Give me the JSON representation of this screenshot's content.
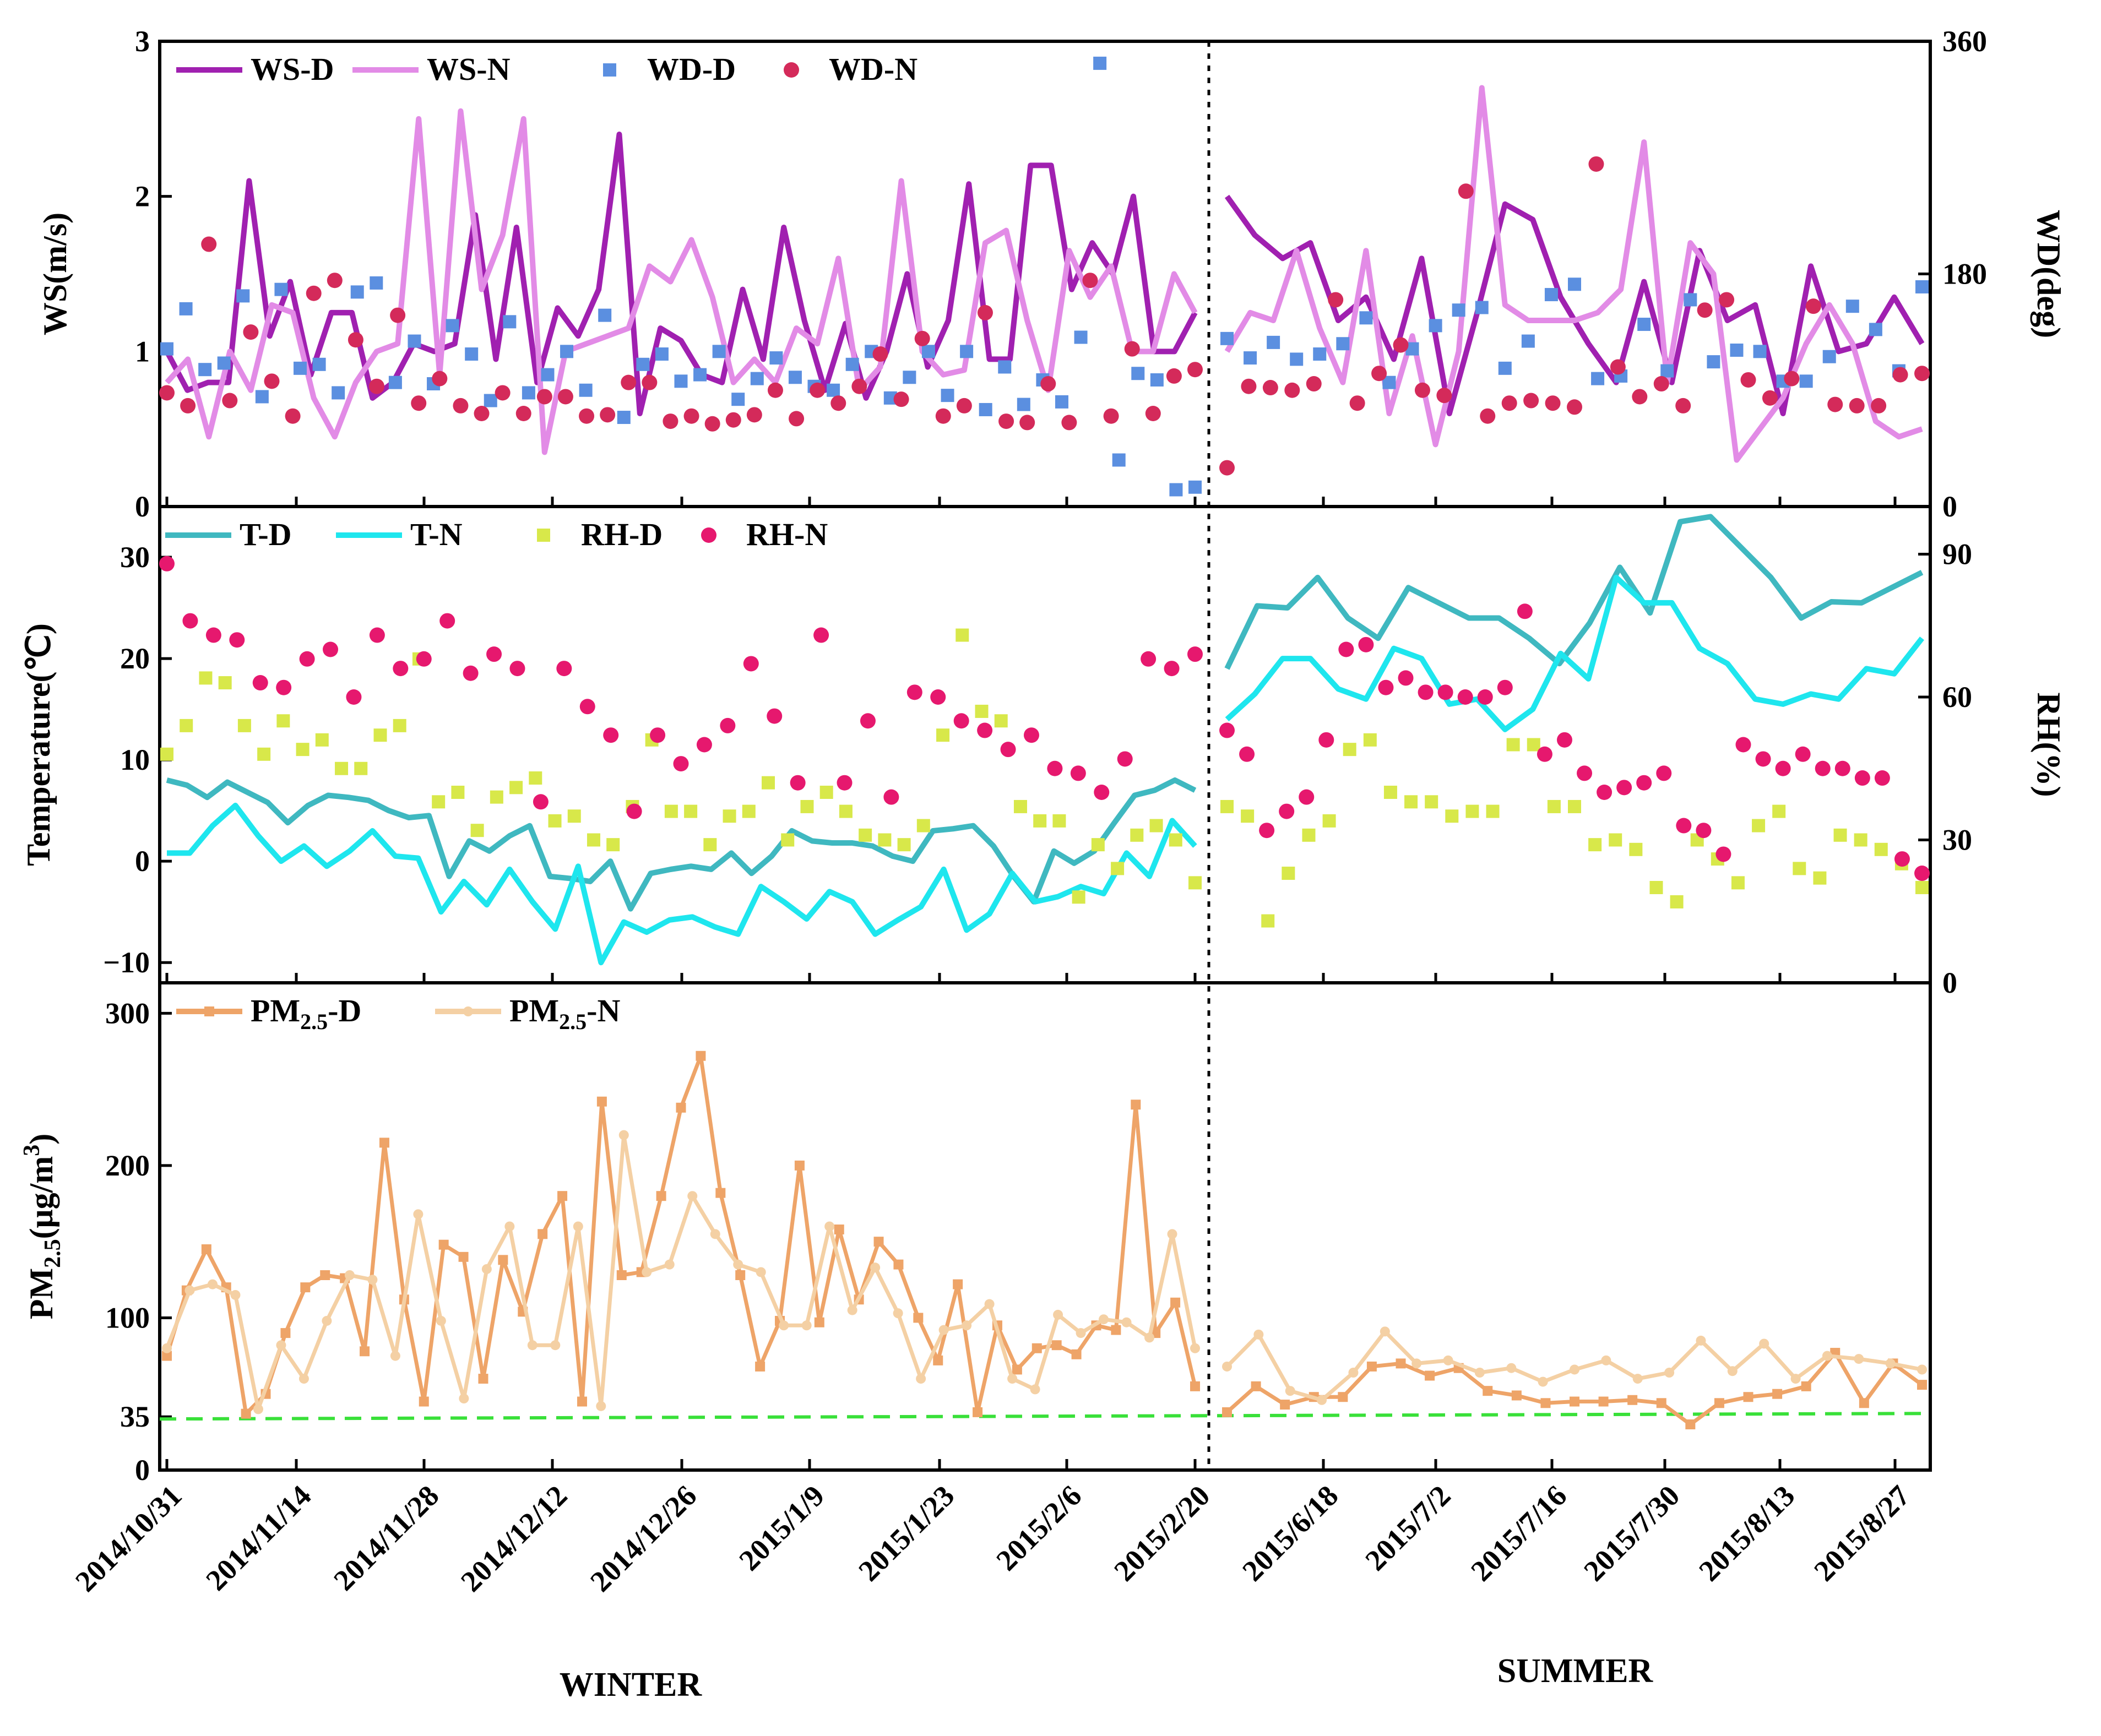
{
  "chart_data": [
    {
      "type": "line",
      "panel": "wind",
      "ylabel": "WS(m/s)",
      "y2label": "WD(deg)",
      "ylim": [
        0,
        3
      ],
      "y2lim": [
        0,
        360
      ],
      "yticks": [
        "0",
        "1",
        "2",
        "3"
      ],
      "y2ticks": [
        "0",
        "180",
        "360"
      ],
      "legend": [
        "WS-D",
        "WS-N",
        "WD-D",
        "WD-N"
      ],
      "colors": {
        "WS-D": "#a020b0",
        "WS-N": "#e28be6",
        "WD-D": "#5b8fe0",
        "WD-N": "#d42a5a"
      },
      "series": [
        {
          "name": "WS-D",
          "axis": "left",
          "kind": "line",
          "winter": [
            1.0,
            0.75,
            0.8,
            0.8,
            2.1,
            1.1,
            1.45,
            0.85,
            1.25,
            1.25,
            0.7,
            0.8,
            1.05,
            1.0,
            1.05,
            1.88,
            0.95,
            1.8,
            0.8,
            1.28,
            1.1,
            1.4,
            2.4,
            0.6,
            1.15,
            1.07,
            0.85,
            0.8,
            1.4,
            0.95,
            1.8,
            1.2,
            0.75,
            1.18,
            0.7,
            1.0,
            1.5,
            0.9,
            1.2,
            2.08,
            0.95,
            0.95,
            2.2,
            2.2,
            1.4,
            1.7,
            1.5,
            2.0,
            1.0,
            1.0,
            1.25
          ],
          "summer": [
            2.0,
            1.75,
            1.6,
            1.7,
            1.2,
            1.35,
            0.95,
            1.6,
            0.6,
            1.25,
            1.95,
            1.85,
            1.35,
            1.05,
            0.8,
            1.45,
            0.8,
            1.65,
            1.2,
            1.3,
            0.6,
            1.55,
            1.0,
            1.05,
            1.35,
            1.05
          ]
        },
        {
          "name": "WS-N",
          "axis": "left",
          "kind": "line",
          "winter": [
            0.8,
            0.95,
            0.45,
            1.0,
            0.75,
            1.3,
            1.25,
            0.7,
            0.45,
            0.8,
            1.0,
            1.05,
            2.5,
            0.85,
            2.55,
            1.4,
            1.75,
            2.5,
            0.35,
            1.0,
            1.05,
            1.1,
            1.15,
            1.55,
            1.45,
            1.72,
            1.35,
            0.8,
            0.95,
            0.8,
            1.15,
            1.05,
            1.6,
            0.75,
            0.9,
            2.1,
            1.0,
            0.85,
            0.88,
            1.7,
            1.78,
            1.2,
            0.75,
            1.65,
            1.35,
            1.55,
            1.0,
            1.0,
            1.5,
            1.25
          ],
          "summer": [
            1.0,
            1.25,
            1.2,
            1.65,
            1.15,
            0.8,
            1.65,
            0.6,
            1.1,
            0.4,
            1.0,
            2.7,
            1.3,
            1.2,
            1.2,
            1.2,
            1.25,
            1.4,
            2.35,
            0.8,
            1.7,
            1.5,
            0.3,
            0.5,
            0.7,
            1.05,
            1.3,
            1.05,
            0.55,
            0.45,
            0.5
          ]
        },
        {
          "name": "WD-D",
          "axis": "right",
          "kind": "scatter",
          "winter": [
            122,
            153,
            106,
            111,
            163,
            85,
            168,
            107,
            110,
            88,
            166,
            173,
            96,
            128,
            95,
            140,
            118,
            82,
            143,
            88,
            102,
            120,
            90,
            148,
            69,
            110,
            118,
            97,
            102,
            120,
            83,
            99,
            115,
            100,
            93,
            90,
            110,
            120,
            84,
            100,
            120,
            86,
            120,
            75,
            108,
            79,
            98,
            81,
            131,
            343,
            36,
            103,
            98,
            13,
            15
          ],
          "summer": [
            130,
            115,
            127,
            114,
            118,
            126,
            146,
            96,
            122,
            140,
            152,
            154,
            107,
            128,
            164,
            172,
            99,
            101,
            141,
            105,
            160,
            112,
            121,
            120,
            97,
            97,
            116,
            155,
            137,
            105,
            170
          ],
          "note": "scatter points read approximately"
        },
        {
          "name": "WD-N",
          "axis": "right",
          "kind": "scatter",
          "winter": [
            88,
            78,
            203,
            82,
            135,
            97,
            70,
            165,
            175,
            129,
            93,
            148,
            80,
            99,
            78,
            72,
            88,
            72,
            85,
            85,
            70,
            71,
            96,
            96,
            66,
            70,
            64,
            67,
            71,
            90,
            68,
            90,
            80,
            93,
            118,
            83,
            130,
            70,
            78,
            150,
            66,
            65,
            95,
            65,
            175,
            70,
            122,
            72,
            101,
            106
          ],
          "summer": [
            30,
            93,
            92,
            90,
            95,
            160,
            80,
            103,
            125,
            90,
            86,
            244,
            70,
            80,
            82,
            80,
            77,
            265,
            108,
            85,
            95,
            78,
            152,
            160,
            98,
            84,
            99,
            155,
            79,
            78,
            78,
            102,
            103
          ],
          "note": "scatter points read approximately"
        }
      ]
    },
    {
      "type": "line",
      "panel": "temperature-humidity",
      "ylabel": "Temperature(℃)",
      "y2label": "RH(%)",
      "ylim": [
        -12,
        35
      ],
      "y2lim": [
        0,
        100
      ],
      "yticks": [
        "−10",
        "0",
        "10",
        "20",
        "30"
      ],
      "y2ticks": [
        "0",
        "30",
        "60",
        "90"
      ],
      "legend": [
        "T-D",
        "T-N",
        "RH-D",
        "RH-N"
      ],
      "colors": {
        "T-D": "#3fb8c0",
        "T-N": "#1ee6ee",
        "RH-D": "#d8e84a",
        "RH-N": "#e6186e"
      },
      "series": [
        {
          "name": "T-D",
          "axis": "left",
          "kind": "line",
          "winter": [
            8,
            7.5,
            6.3,
            7.8,
            6.8,
            5.8,
            3.8,
            5.5,
            6.5,
            6.3,
            6,
            5,
            4.3,
            4.5,
            -1.5,
            2,
            1,
            2.5,
            3.5,
            -1.5,
            -1.7,
            -2,
            0,
            -4.7,
            -1.2,
            -0.8,
            -0.5,
            -0.8,
            0.8,
            -1.2,
            0.5,
            3,
            2,
            1.8,
            1.8,
            1.5,
            0.5,
            0,
            3,
            3.2,
            3.5,
            1.5,
            -1.5,
            -4,
            1,
            -0.2,
            1,
            3.8,
            6.5,
            7,
            8,
            7
          ],
          "summer": [
            19,
            25.2,
            25,
            28,
            24,
            22,
            27,
            25.5,
            24,
            24,
            22,
            19.5,
            23.5,
            29,
            24.5,
            33.5,
            34,
            31,
            28,
            24,
            25.6,
            25.5,
            27,
            28.5
          ]
        },
        {
          "name": "T-N",
          "axis": "left",
          "kind": "line",
          "winter": [
            0.8,
            0.8,
            3.5,
            5.5,
            2.5,
            0,
            1.5,
            -0.5,
            1,
            3,
            0.5,
            0.3,
            -5,
            -2,
            -4.3,
            -0.8,
            -4,
            -6.7,
            -0.5,
            -10,
            -6,
            -7,
            -5.8,
            -5.5,
            -6.5,
            -7.2,
            -2.5,
            -4,
            -5.7,
            -3,
            -4,
            -7.2,
            -5.8,
            -4.5,
            -0.8,
            -6.8,
            -5.2,
            -1.2,
            -4,
            -3.5,
            -2.5,
            -3.2,
            0.8,
            -1.5,
            4,
            1.5
          ],
          "summer": [
            14,
            16.5,
            20,
            20,
            17,
            16,
            21,
            20,
            15.5,
            16,
            13,
            15,
            20.5,
            18,
            28,
            25.5,
            25.5,
            21,
            19.5,
            16,
            15.5,
            16.5,
            16,
            19,
            18.5,
            22
          ]
        },
        {
          "name": "RH-D",
          "axis": "right",
          "kind": "scatter",
          "winter": [
            48,
            54,
            64,
            63,
            54,
            48,
            55,
            49,
            51,
            45,
            45,
            52,
            54,
            68,
            38,
            40,
            32,
            39,
            41,
            43,
            34,
            35,
            30,
            29,
            37,
            51,
            36,
            36,
            29,
            35,
            36,
            42,
            30,
            37,
            40,
            36,
            31,
            30,
            29,
            33,
            52,
            73,
            57,
            55,
            37,
            34,
            34,
            18,
            29,
            24,
            31,
            33,
            30,
            21
          ],
          "summer": [
            37,
            35,
            13,
            23,
            31,
            34,
            49,
            51,
            40,
            38,
            38,
            35,
            36,
            36,
            50,
            50,
            37,
            37,
            29,
            30,
            28,
            20,
            17,
            30,
            26,
            21,
            33,
            36,
            24,
            22,
            31,
            30,
            28,
            25,
            20
          ]
        },
        {
          "name": "RH-N",
          "axis": "right",
          "kind": "scatter",
          "winter": [
            88,
            76,
            73,
            72,
            63,
            62,
            68,
            70,
            60,
            73,
            66,
            68,
            76,
            65,
            69,
            66,
            38,
            66,
            58,
            52,
            36,
            52,
            46,
            50,
            54,
            67,
            56,
            42,
            73,
            42,
            55,
            39,
            61,
            60,
            55,
            53,
            49,
            52,
            45,
            44,
            40,
            47,
            68,
            66,
            69
          ],
          "summer": [
            53,
            48,
            32,
            36,
            39,
            51,
            70,
            71,
            62,
            64,
            61,
            61,
            60,
            60,
            62,
            78,
            48,
            51,
            44,
            40,
            41,
            42,
            44,
            33,
            32,
            27,
            50,
            47,
            45,
            48,
            45,
            45,
            43,
            43,
            26,
            23
          ]
        }
      ]
    },
    {
      "type": "line",
      "panel": "pm25",
      "ylabel": "PM2.5(μg/m3)",
      "ylim": [
        0,
        320
      ],
      "yticks": [
        "0",
        "35",
        "100",
        "200",
        "300"
      ],
      "legend": [
        "PM2.5-D",
        "PM2.5-N"
      ],
      "colors": {
        "PM2.5-D": "#eea468",
        "PM2.5-N": "#f4d0a4",
        "reference": "#39e039"
      },
      "reference_line": {
        "value": 35,
        "label": "35"
      },
      "series": [
        {
          "name": "PM2.5-D",
          "kind": "line",
          "winter": [
            75,
            118,
            145,
            120,
            37,
            50,
            90,
            120,
            128,
            126,
            78,
            215,
            112,
            45,
            148,
            140,
            60,
            138,
            104,
            155,
            180,
            45,
            242,
            128,
            130,
            180,
            238,
            272,
            182,
            128,
            68,
            98,
            200,
            97,
            158,
            112,
            150,
            135,
            100,
            72,
            122,
            38,
            95,
            66,
            80,
            82,
            76,
            95,
            92,
            240,
            90,
            110,
            55
          ],
          "summer": [
            38,
            55,
            43,
            48,
            48,
            68,
            70,
            62,
            67,
            52,
            49,
            44,
            45,
            45,
            46,
            44,
            30,
            44,
            48,
            50,
            55,
            77,
            44,
            70,
            56
          ]
        },
        {
          "name": "PM2.5-N",
          "kind": "line",
          "winter": [
            80,
            118,
            122,
            115,
            40,
            82,
            60,
            98,
            128,
            125,
            75,
            168,
            98,
            47,
            132,
            160,
            82,
            82,
            160,
            42,
            220,
            130,
            135,
            180,
            155,
            135,
            130,
            95,
            95,
            160,
            105,
            133,
            103,
            60,
            92,
            95,
            109,
            60,
            53,
            102,
            90,
            99,
            97,
            87,
            155,
            80
          ],
          "summer": [
            68,
            89,
            52,
            46,
            64,
            91,
            70,
            72,
            64,
            67,
            58,
            66,
            72,
            60,
            64,
            85,
            65,
            83,
            60,
            75,
            73,
            70,
            66
          ]
        }
      ]
    }
  ],
  "x_axis": {
    "ticks": [
      "2014/10/31",
      "2014/11/14",
      "2014/11/28",
      "2014/12/12",
      "2014/12/26",
      "2015/1/9",
      "2015/1/23",
      "2015/2/6",
      "2015/2/20",
      "2015/6/18",
      "2015/7/2",
      "2015/7/16",
      "2015/7/30",
      "2015/8/13",
      "2015/8/27"
    ],
    "winter_label": "WINTER",
    "summer_label": "SUMMER"
  }
}
